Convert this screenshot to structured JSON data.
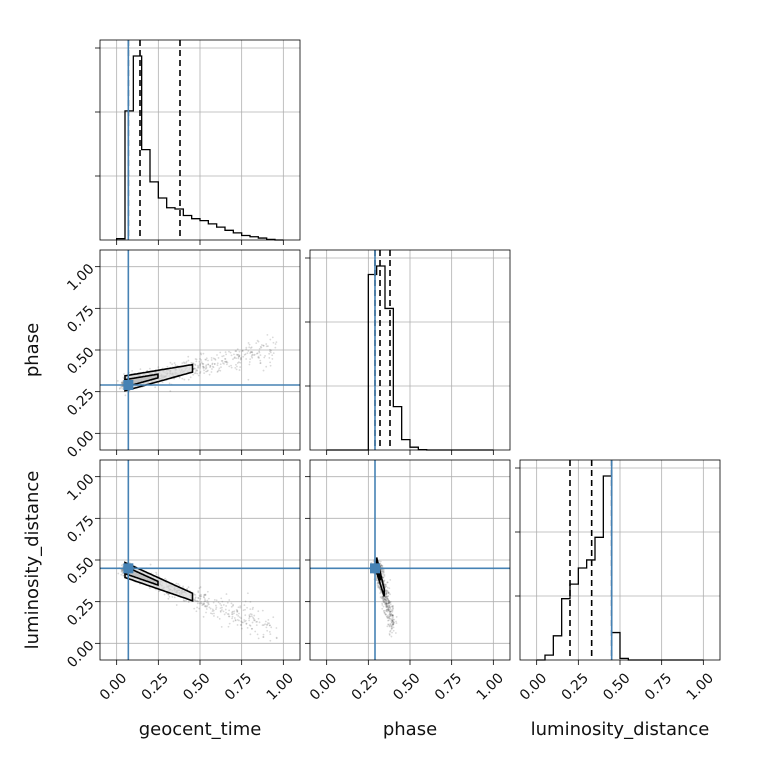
{
  "chart_data": {
    "type": "corner",
    "parameters": [
      "geocent_time",
      "phase",
      "luminosity_distance"
    ],
    "range": [
      -0.1,
      1.1
    ],
    "ticks": [
      0.0,
      0.25,
      0.5,
      0.75,
      1.0
    ],
    "tick_labels": [
      "0.00",
      "0.25",
      "0.50",
      "0.75",
      "1.00"
    ],
    "grid": true,
    "colors": {
      "truth": "#4682b4",
      "hist": "#000000",
      "quantile": "#000000",
      "scatter": "#555555"
    },
    "truths": {
      "geocent_time": 0.07,
      "phase": 0.29,
      "luminosity_distance": 0.45
    },
    "quantiles": {
      "geocent_time": [
        0.07,
        0.14,
        0.38
      ],
      "phase": [
        0.29,
        0.32,
        0.38
      ],
      "luminosity_distance": [
        0.2,
        0.33,
        0.45
      ]
    },
    "histograms": {
      "geocent_time": {
        "edges": [
          0.0,
          0.05,
          0.1,
          0.15,
          0.2,
          0.25,
          0.3,
          0.35,
          0.4,
          0.45,
          0.5,
          0.55,
          0.6,
          0.65,
          0.7,
          0.75,
          0.8,
          0.85,
          0.9,
          0.95,
          1.0
        ],
        "counts": [
          2,
          200,
          285,
          140,
          90,
          65,
          50,
          48,
          38,
          33,
          30,
          25,
          20,
          15,
          11,
          7,
          5,
          3,
          1,
          0
        ]
      },
      "phase": {
        "edges": [
          0.0,
          0.05,
          0.1,
          0.15,
          0.2,
          0.25,
          0.3,
          0.35,
          0.4,
          0.45,
          0.5,
          0.55,
          0.6,
          0.65,
          0.7,
          0.75,
          0.8,
          0.85,
          0.9,
          0.95,
          1.0
        ],
        "counts": [
          0,
          0,
          0,
          0,
          0,
          930,
          975,
          750,
          230,
          55,
          15,
          2,
          0,
          0,
          0,
          0,
          0,
          0,
          0,
          0
        ]
      },
      "luminosity_distance": {
        "edges": [
          0.0,
          0.05,
          0.1,
          0.15,
          0.2,
          0.25,
          0.3,
          0.35,
          0.4,
          0.45,
          0.5,
          0.55,
          0.6,
          0.65,
          0.7,
          0.75,
          0.8,
          0.85,
          0.9,
          0.95,
          1.0
        ],
        "counts": [
          0,
          15,
          75,
          190,
          235,
          285,
          310,
          380,
          570,
          85,
          5,
          0,
          0,
          0,
          0,
          0,
          0,
          0,
          0,
          0
        ]
      }
    },
    "scatter_shapes": {
      "phase_vs_geocent_time": {
        "x0": 0.05,
        "y0": 0.3,
        "x1": 0.95,
        "y1": 0.5,
        "spread": 0.045,
        "n": 700
      },
      "luminosity_distance_vs_geocent_time": {
        "x0": 0.05,
        "y0": 0.44,
        "x1": 0.95,
        "y1": 0.08,
        "spread": 0.045,
        "n": 700
      },
      "luminosity_distance_vs_phase": {
        "x0": 0.3,
        "y0": 0.47,
        "x1": 0.4,
        "y1": 0.1,
        "spread": 0.035,
        "n": 700
      }
    }
  }
}
